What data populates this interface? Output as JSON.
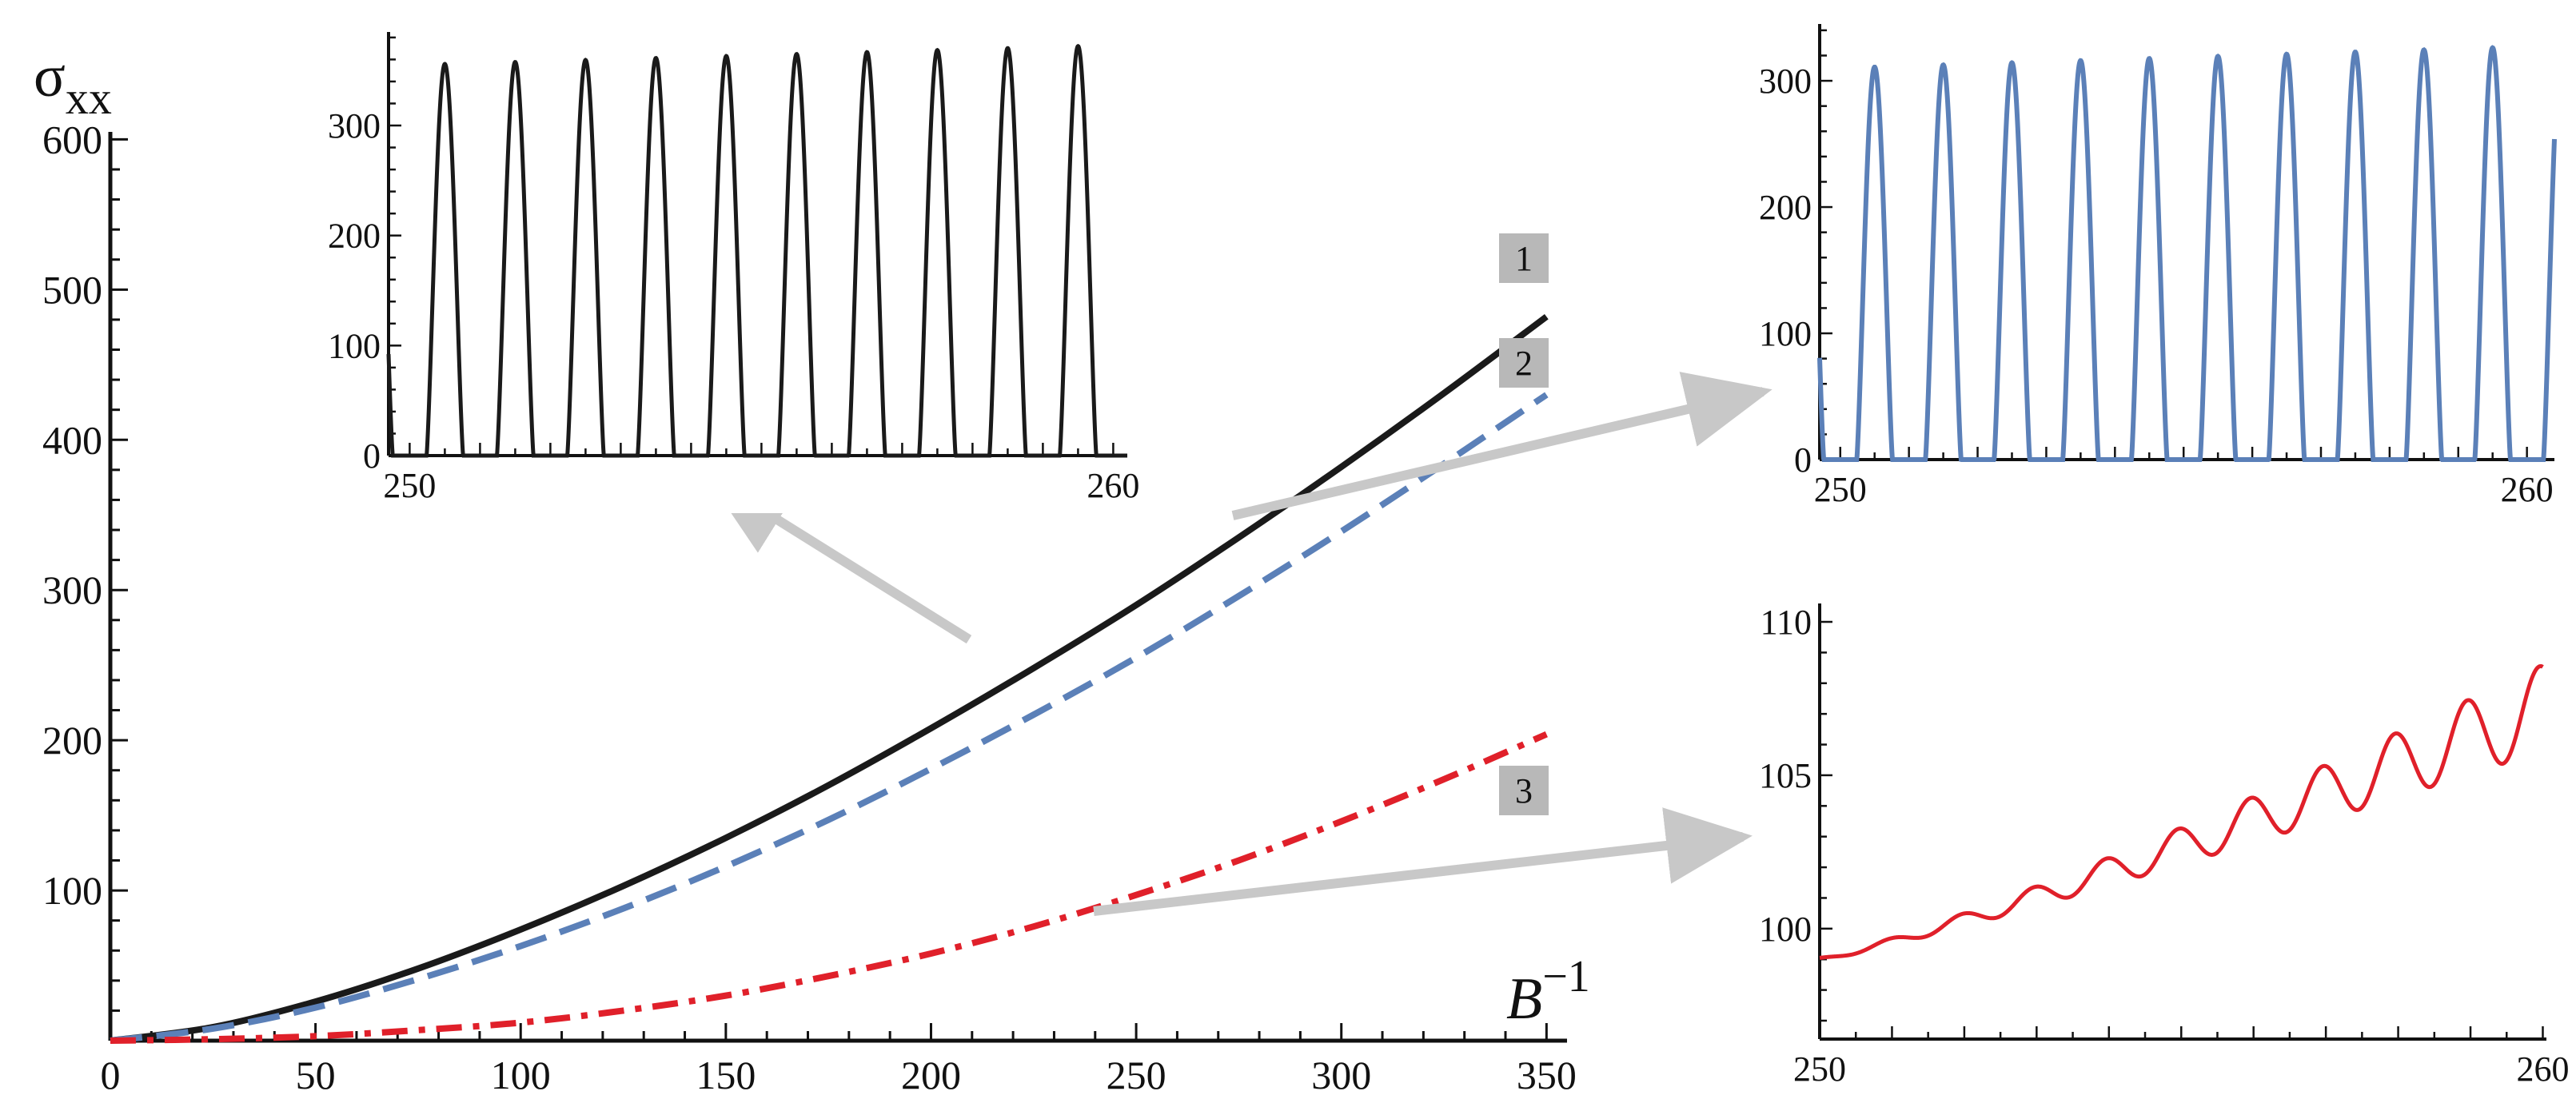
{
  "chart_data": [
    {
      "id": "main",
      "type": "line",
      "title": "",
      "ylabel": "σ",
      "ylabel_subscript": "xx",
      "xlabel": "B",
      "xlabel_superscript": "−1",
      "xlim": [
        0,
        355
      ],
      "ylim": [
        0,
        605
      ],
      "xticks": [
        0,
        50,
        100,
        150,
        200,
        250,
        300,
        350
      ],
      "yticks": [
        100,
        200,
        300,
        400,
        500,
        600
      ],
      "x_major_labels": [
        "0",
        "50",
        "100",
        "150",
        "200",
        "250",
        "300",
        "350"
      ],
      "y_major_labels": [
        "100",
        "200",
        "300",
        "400",
        "500",
        "600"
      ],
      "grid": false,
      "series": [
        {
          "name": "1",
          "color": "#1a1a1a",
          "style": "solid",
          "x": [
            0,
            25,
            50,
            75,
            100,
            125,
            150,
            175,
            200,
            225,
            250,
            275,
            300,
            325,
            350
          ],
          "y": [
            0,
            9,
            26,
            48,
            74,
            103,
            135,
            170,
            208,
            248,
            290,
            335,
            382,
            431,
            482
          ]
        },
        {
          "name": "2",
          "color": "#5b80b8",
          "style": "dashed",
          "x": [
            0,
            25,
            50,
            75,
            100,
            125,
            150,
            175,
            200,
            225,
            250,
            275,
            300,
            325,
            350
          ],
          "y": [
            0,
            8,
            22,
            41,
            63,
            88,
            116,
            147,
            181,
            217,
            255,
            296,
            339,
            384,
            430
          ]
        },
        {
          "name": "3",
          "color": "#e0202a",
          "style": "dash-dot",
          "x": [
            0,
            25,
            50,
            75,
            100,
            125,
            150,
            175,
            200,
            225,
            250,
            275,
            300,
            325,
            350
          ],
          "y": [
            0,
            1,
            3,
            7,
            12,
            20,
            30,
            43,
            58,
            76,
            97,
            120,
            146,
            174,
            204
          ]
        }
      ],
      "curve_labels": [
        "1",
        "2",
        "3"
      ],
      "annotations": [
        {
          "from_series": "1",
          "at_x": 210,
          "to": "inset-top-middle"
        },
        {
          "from_series": "2",
          "at_x": 272,
          "to": "inset-top-right"
        },
        {
          "from_series": "3",
          "at_x": 238,
          "to": "inset-bottom-right"
        }
      ]
    },
    {
      "id": "inset_series1",
      "type": "line",
      "series_name": "1",
      "color": "#1a1a1a",
      "xlim": [
        249.7,
        260.2
      ],
      "ylim": [
        0,
        385
      ],
      "xtick_labels": [
        "250",
        "260"
      ],
      "ytick_labels": [
        "0",
        "100",
        "200",
        "300"
      ],
      "yticks": [
        0,
        100,
        200,
        300
      ],
      "periods": 10,
      "x_start": 250,
      "x_end": 260,
      "peak_start": 355,
      "peak_end": 373,
      "peak_width": 0.52
    },
    {
      "id": "inset_series2",
      "type": "line",
      "series_name": "2",
      "color": "#5b80b8",
      "xlim": [
        249.7,
        260.4
      ],
      "ylim": [
        0,
        345
      ],
      "xtick_labels": [
        "250",
        "260"
      ],
      "ytick_labels": [
        "0",
        "100",
        "200",
        "300"
      ],
      "yticks": [
        0,
        100,
        200,
        300
      ],
      "periods": 10,
      "x_start": 250,
      "x_end": 260,
      "peak_start": 310,
      "peak_end": 327,
      "peak_width": 0.52
    },
    {
      "id": "inset_series3",
      "type": "line",
      "series_name": "3",
      "color": "#e0202a",
      "xlim": [
        250,
        260.05
      ],
      "ylim": [
        96.4,
        110.6
      ],
      "xtick_labels": [
        "250",
        "260"
      ],
      "ytick_labels": [
        "100",
        "105",
        "110"
      ],
      "yticks": [
        100,
        105,
        110
      ],
      "x_start": 250,
      "x_end": 260,
      "base_start": 99.0,
      "base_end": 107.2,
      "osc_start": 0.05,
      "osc_end": 1.4,
      "periods": 10
    }
  ]
}
